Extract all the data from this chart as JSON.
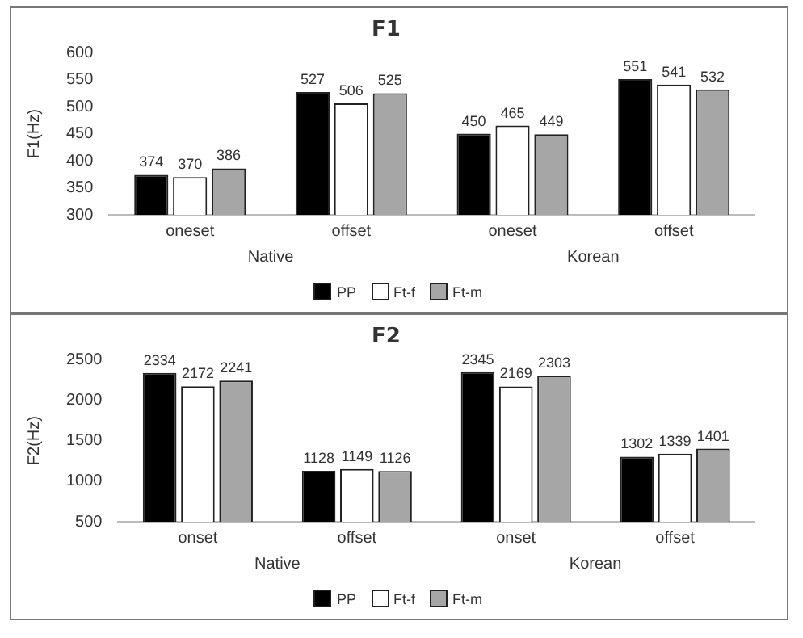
{
  "chart_data": [
    {
      "type": "bar",
      "title": "F1",
      "ylabel": "F1(Hz)",
      "categories": [
        "oneset",
        "offset",
        "oneset",
        "offset"
      ],
      "series": [
        {
          "name": "PP",
          "color": "#000000",
          "values": [
            374,
            527,
            450,
            551
          ]
        },
        {
          "name": "Ft-f",
          "color": "#ffffff",
          "values": [
            370,
            506,
            465,
            541
          ]
        },
        {
          "name": "Ft-m",
          "color": "#a6a6a6",
          "values": [
            386,
            525,
            449,
            532
          ]
        }
      ],
      "ylim": [
        300,
        600
      ],
      "yticks": [
        300,
        350,
        400,
        450,
        500,
        550,
        600
      ],
      "grid": false,
      "legend": "bottom",
      "data_labels": true,
      "annotations": [
        "Native",
        "Korean"
      ]
    },
    {
      "type": "bar",
      "title": "F2",
      "ylabel": "F2(Hz)",
      "categories": [
        "onset",
        "offset",
        "onset",
        "offset"
      ],
      "series": [
        {
          "name": "PP",
          "color": "#000000",
          "values": [
            2334,
            1128,
            2345,
            1302
          ]
        },
        {
          "name": "Ft-f",
          "color": "#ffffff",
          "values": [
            2172,
            1149,
            2169,
            1339
          ]
        },
        {
          "name": "Ft-m",
          "color": "#a6a6a6",
          "values": [
            2241,
            1126,
            2303,
            1401
          ]
        }
      ],
      "ylim": [
        500,
        2500
      ],
      "yticks": [
        500,
        1000,
        1500,
        2000,
        2500
      ],
      "grid": false,
      "legend": "bottom",
      "data_labels": true,
      "annotations": [
        "Native",
        "Korean"
      ]
    }
  ]
}
